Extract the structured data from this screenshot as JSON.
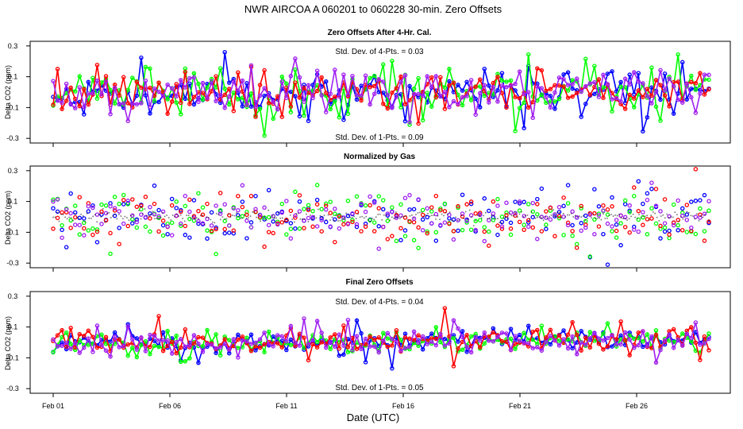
{
  "figure": {
    "title": "NWR   AIRCOA A   060201 to 060228   30-min. Zero Offsets",
    "xlabel": "Date (UTC)",
    "x_ticks": [
      "Feb 01",
      "Feb 06",
      "Feb 11",
      "Feb 16",
      "Feb 21",
      "Feb 26"
    ]
  },
  "colors": {
    "blue": "#0000ff",
    "green": "#00ff00",
    "red": "#ff0000",
    "purple": "#a020f0",
    "black": "#000000"
  },
  "chart_data": [
    {
      "type": "scatter",
      "title": "Zero Offsets After 4-Hr. Cal.",
      "ylabel": "Delta CO2 (ppm)",
      "ylim": [
        -0.33,
        0.33
      ],
      "xlim": [
        0,
        28.5
      ],
      "y_ticks": [
        "-0.3",
        "-0.1",
        "0.1",
        "0.3"
      ],
      "annotation_top": "Std. Dev. of 4-Pts. = 0.03",
      "annotation_bottom": "Std. Dev. of 1-Pts. = 0.09",
      "series": [
        {
          "name": "blue",
          "color": "#0000ff",
          "spread": 0.075,
          "amp": 0.22,
          "lines": true,
          "seed": 11
        },
        {
          "name": "green",
          "color": "#00ff00",
          "spread": 0.07,
          "amp": 0.22,
          "lines": true,
          "seed": 23
        },
        {
          "name": "red",
          "color": "#ff0000",
          "spread": 0.065,
          "amp": 0.2,
          "lines": true,
          "seed": 37
        },
        {
          "name": "purple",
          "color": "#a020f0",
          "spread": 0.06,
          "amp": 0.18,
          "lines": true,
          "seed": 51
        }
      ],
      "drift": [
        [
          0,
          -0.01
        ],
        [
          14,
          -0.005
        ],
        [
          24,
          0.01
        ],
        [
          28.5,
          0.02
        ]
      ]
    },
    {
      "type": "scatter",
      "title": "Normalized by Gas",
      "ylabel": "Delta CO2 (ppm)",
      "ylim": [
        -0.33,
        0.33
      ],
      "xlim": [
        0,
        28.5
      ],
      "y_ticks": [
        "-0.3",
        "-0.1",
        "0.1",
        "0.3"
      ],
      "series": [
        {
          "name": "blue",
          "color": "#0000ff",
          "spread": 0.09,
          "amp": 0.25,
          "lines": false,
          "seed": 61
        },
        {
          "name": "green",
          "color": "#00ff00",
          "spread": 0.085,
          "amp": 0.25,
          "lines": false,
          "seed": 73
        },
        {
          "name": "red",
          "color": "#ff0000",
          "spread": 0.08,
          "amp": 0.24,
          "lines": false,
          "seed": 89
        },
        {
          "name": "purple",
          "color": "#a020f0",
          "spread": 0.07,
          "amp": 0.22,
          "lines": false,
          "seed": 97
        },
        {
          "name": "black",
          "color": "#000000",
          "spread": 0.015,
          "amp": 0.04,
          "lines": false,
          "seed": 5,
          "dense": true
        }
      ],
      "drift": [
        [
          0,
          0.0
        ],
        [
          28.5,
          0.0
        ]
      ]
    },
    {
      "type": "scatter",
      "title": "Final Zero Offsets",
      "ylabel": "Delta CO2 (ppm)",
      "ylim": [
        -0.33,
        0.33
      ],
      "xlim": [
        0,
        28.5
      ],
      "y_ticks": [
        "-0.3",
        "-0.1",
        "0.1",
        "0.3"
      ],
      "annotation_top": "Std. Dev. of 4-Pts. = 0.04",
      "annotation_bottom": "Std. Dev. of 1-Pts. = 0.05",
      "series": [
        {
          "name": "blue",
          "color": "#0000ff",
          "spread": 0.035,
          "amp": 0.12,
          "lines": true,
          "seed": 101
        },
        {
          "name": "green",
          "color": "#00ff00",
          "spread": 0.035,
          "amp": 0.11,
          "lines": true,
          "seed": 113
        },
        {
          "name": "red",
          "color": "#ff0000",
          "spread": 0.04,
          "amp": 0.15,
          "lines": true,
          "seed": 127
        },
        {
          "name": "purple",
          "color": "#a020f0",
          "spread": 0.035,
          "amp": 0.11,
          "lines": true,
          "seed": 131
        }
      ],
      "drift": [
        [
          0,
          -0.01
        ],
        [
          10,
          0.0
        ],
        [
          20,
          0.02
        ],
        [
          28.5,
          0.01
        ]
      ]
    }
  ]
}
